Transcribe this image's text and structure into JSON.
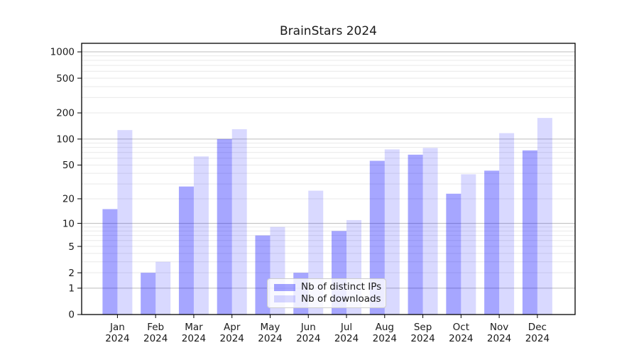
{
  "chart_data": {
    "type": "bar",
    "title": "BrainStars 2024",
    "categories": [
      "Jan 2024",
      "Feb 2024",
      "Mar 2024",
      "Apr 2024",
      "May 2024",
      "Jun 2024",
      "Jul 2024",
      "Aug 2024",
      "Sep 2024",
      "Oct 2024",
      "Nov 2024",
      "Dec 2024"
    ],
    "series": [
      {
        "name": "Nb of distinct IPs",
        "color": "rgba(0,0,255,0.35)",
        "values": [
          15,
          2,
          28,
          100,
          7,
          2,
          8,
          56,
          66,
          23,
          43,
          74
        ]
      },
      {
        "name": "Nb of downloads",
        "color": "rgba(0,0,255,0.15)",
        "values": [
          127,
          3,
          63,
          130,
          9,
          25,
          11,
          76,
          79,
          39,
          117,
          175
        ]
      }
    ],
    "y_axis": {
      "scale": "log(1+x)",
      "tick_values": [
        0,
        1,
        2,
        5,
        10,
        20,
        50,
        100,
        200,
        500,
        1000
      ],
      "tick_labels": [
        "0",
        "1",
        "2",
        "5",
        "10",
        "20",
        "50",
        "100",
        "200",
        "500",
        "1000"
      ],
      "major_grid_values": [
        1,
        10,
        100,
        1000
      ],
      "range_max": 1253
    },
    "legend": {
      "position": "lower center"
    },
    "grid": true
  },
  "colors": {
    "bar_distinct_ips": "rgba(0,0,255,0.35)",
    "bar_downloads": "rgba(0,0,255,0.15)",
    "grid_major": "#bcbcbc",
    "grid_minor": "#e9e9e9",
    "axis_frame": "#000000",
    "tick": "#000000",
    "text": "#1a1a1a",
    "legend_border": "#cccccc",
    "legend_bg": "rgba(255,255,255,0.8)"
  }
}
